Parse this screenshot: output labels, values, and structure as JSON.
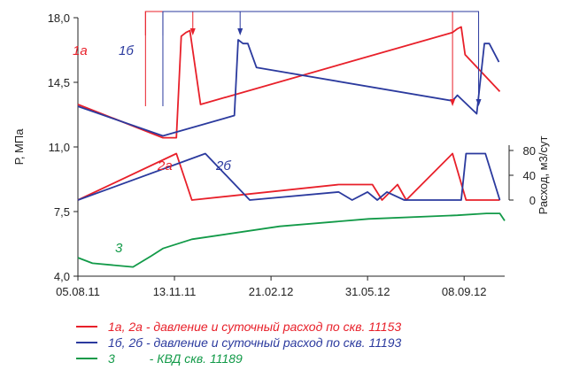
{
  "chart_data": {
    "type": "line",
    "x_axis": {
      "ticks": [
        "05.08.11",
        "13.11.11",
        "21.02.12",
        "31.05.12",
        "08.09.12"
      ]
    },
    "y_left": {
      "label": "Р, МПа",
      "ticks": [
        "4,0",
        "7,5",
        "11,0",
        "14,5",
        "18,0"
      ],
      "range": [
        4.0,
        18.0
      ]
    },
    "y_right": {
      "label": "Расход, м3/сут",
      "ticks": [
        "0",
        "40",
        "80"
      ],
      "range": [
        0,
        80
      ]
    },
    "colors": {
      "series_1": "#e8202a",
      "series_2": "#2b3a9e",
      "series_3": "#129a48",
      "arrows": "#e8202a"
    },
    "series_labels": {
      "p_11153": "1а",
      "p_11193": "1б",
      "q_11153": "2а",
      "q_11193": "2б",
      "kvd_11189": "3"
    },
    "series": [
      {
        "id": "p_11153",
        "axis": "left",
        "color": "#e8202a",
        "x": [
          "05.08.11",
          "01.11.11",
          "15.11.11",
          "20.11.11",
          "25.11.11",
          "29.11.11",
          "10.12.11",
          "27.08.12",
          "01.09.12",
          "05.09.12",
          "09.09.12",
          "15.10.12"
        ],
        "y": [
          13.3,
          11.5,
          11.5,
          17.0,
          17.2,
          17.3,
          13.3,
          17.2,
          17.4,
          17.5,
          16.0,
          14.0
        ]
      },
      {
        "id": "p_11193",
        "axis": "left",
        "color": "#2b3a9e",
        "x": [
          "05.08.11",
          "01.11.11",
          "14.01.12",
          "18.01.12",
          "23.01.12",
          "28.01.12",
          "06.02.12",
          "27.08.12",
          "01.09.12",
          "21.09.12",
          "29.09.12",
          "04.10.12",
          "14.10.12"
        ],
        "y": [
          13.2,
          11.6,
          12.7,
          16.8,
          16.6,
          16.6,
          15.3,
          13.5,
          13.8,
          12.8,
          16.6,
          16.6,
          15.6
        ]
      },
      {
        "id": "q_11153",
        "axis": "right",
        "color": "#e8202a",
        "x": [
          "05.08.11",
          "15.11.11",
          "01.12.11",
          "01.05.12",
          "13.05.12",
          "05.06.12",
          "15.06.12",
          "01.07.12",
          "10.07.12",
          "27.08.12",
          "10.09.12",
          "15.10.12"
        ],
        "y": [
          0,
          75,
          0,
          25,
          25,
          25,
          0,
          25,
          0,
          75,
          0,
          0
        ]
      },
      {
        "id": "q_11193",
        "axis": "right",
        "color": "#2b3a9e",
        "x": [
          "05.08.11",
          "15.12.11",
          "30.01.12",
          "01.05.12",
          "15.05.12",
          "31.05.12",
          "10.06.12",
          "20.06.12",
          "08.07.12",
          "27.08.12",
          "05.09.12",
          "10.09.12",
          "30.09.12",
          "15.10.12"
        ],
        "y": [
          0,
          75,
          0,
          13,
          0,
          13,
          0,
          13,
          0,
          0,
          0,
          75,
          75,
          0
        ]
      },
      {
        "id": "kvd_11189",
        "axis": "left",
        "color": "#129a48",
        "x": [
          "05.08.11",
          "20.08.11",
          "01.10.11",
          "20.10.11",
          "01.11.11",
          "01.12.11",
          "01.03.12",
          "01.06.12",
          "01.09.12",
          "01.10.12",
          "15.10.12",
          "20.10.12"
        ],
        "y": [
          5.0,
          4.7,
          4.5,
          5.1,
          5.5,
          6.0,
          6.7,
          7.1,
          7.3,
          7.4,
          7.4,
          7.0
        ]
      }
    ],
    "arrows": [
      {
        "from": "14.10.11",
        "to": "02.12.11",
        "color": "#e8202a"
      },
      {
        "from": "14.10.11",
        "to": "27.08.12",
        "color": "#e8202a"
      },
      {
        "from": "01.11.11",
        "to": "20.01.12",
        "color": "#2b3a9e"
      },
      {
        "from": "01.11.11",
        "to": "23.09.12",
        "color": "#2b3a9e"
      }
    ],
    "legend": [
      {
        "label": "1а, 2а - давление и суточный расход по скв. 11153",
        "color": "#e8202a"
      },
      {
        "label": "1б, 2б - давление и суточный расход по скв. 11193",
        "color": "#2b3a9e"
      },
      {
        "label": "3          - КВД скв. 11189",
        "color": "#129a48"
      }
    ],
    "grid": false,
    "legend_position": "bottom"
  }
}
